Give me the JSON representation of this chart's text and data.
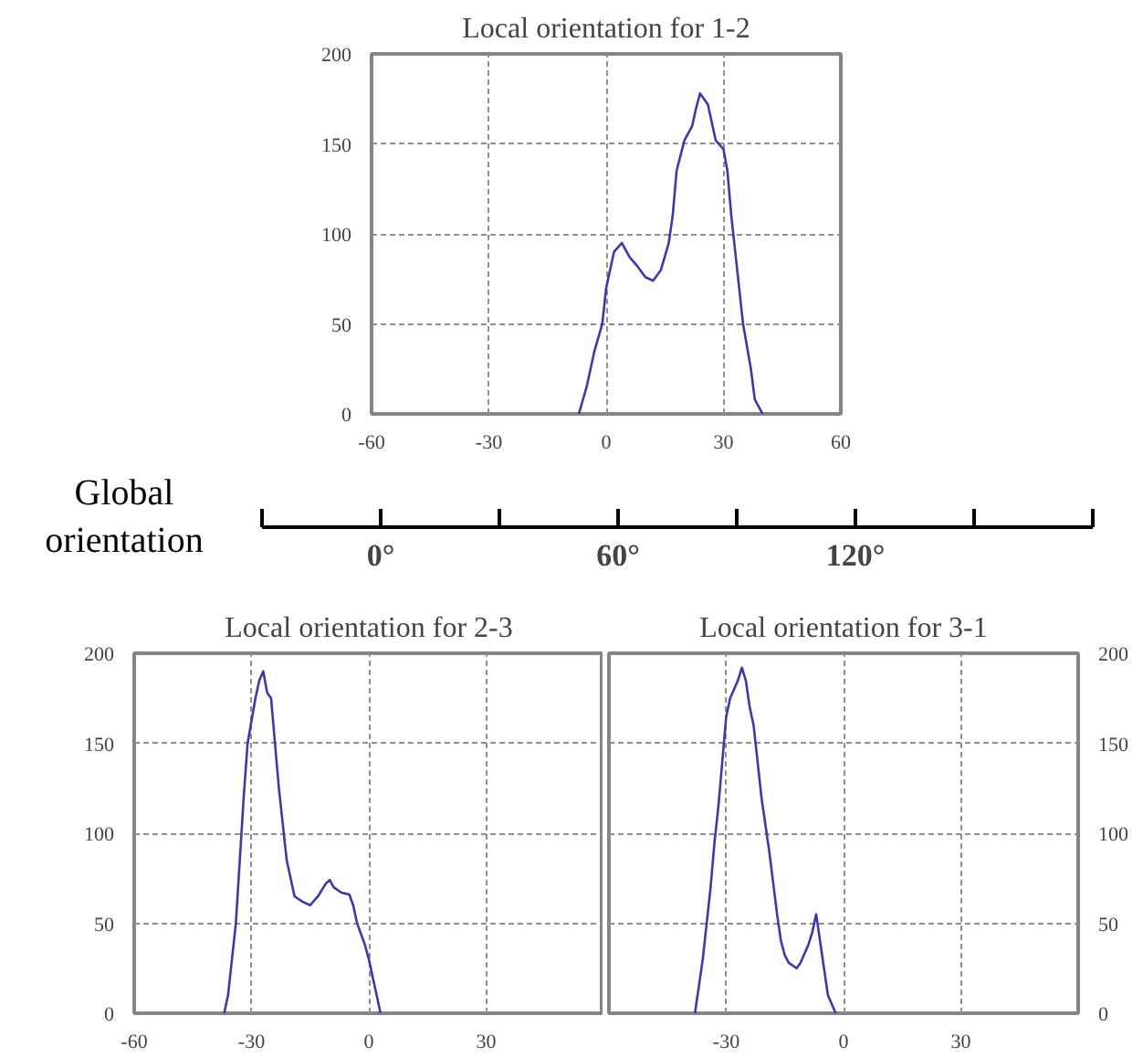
{
  "chart_data": [
    {
      "type": "line",
      "title": "Local orientation for 1-2",
      "color": "#3a3aa8",
      "xlim": [
        -60,
        60
      ],
      "ylim": [
        0,
        200
      ],
      "xticks": [
        -60,
        -30,
        0,
        30,
        60
      ],
      "yticks": [
        0,
        50,
        100,
        150,
        200
      ],
      "grid": true,
      "x": [
        -7,
        -5,
        -3,
        -1,
        0,
        2,
        4,
        6,
        8,
        10,
        12,
        14,
        16,
        17,
        18,
        20,
        22,
        23,
        24,
        26,
        27,
        28,
        30,
        31,
        32,
        33,
        34,
        35,
        37,
        38,
        40
      ],
      "values": [
        0,
        15,
        35,
        50,
        70,
        90,
        95,
        87,
        82,
        76,
        74,
        80,
        95,
        110,
        135,
        152,
        160,
        170,
        178,
        172,
        162,
        152,
        147,
        135,
        110,
        90,
        70,
        50,
        25,
        8,
        0
      ]
    },
    {
      "type": "other",
      "xlabel": "Global orientation",
      "annotations": [
        "0°",
        "60°",
        "120°"
      ]
    },
    {
      "type": "line",
      "title": "Local orientation for 2-3",
      "color": "#3a3aa8",
      "xlim": [
        -60,
        60
      ],
      "ylim": [
        0,
        200
      ],
      "xticks": [
        -60,
        -30,
        0,
        30
      ],
      "yticks": [
        0,
        50,
        100,
        150,
        200
      ],
      "grid": true,
      "x": [
        -37,
        -36,
        -34,
        -33,
        -32,
        -31,
        -29,
        -28,
        -27,
        -26,
        -25,
        -24,
        -23,
        -22,
        -21,
        -20,
        -19,
        -17,
        -15,
        -13,
        -11,
        -10,
        -9,
        -7,
        -5,
        -4,
        -3,
        -1,
        0,
        1,
        2,
        3
      ],
      "values": [
        0,
        10,
        50,
        85,
        120,
        150,
        175,
        185,
        190,
        178,
        175,
        150,
        125,
        105,
        85,
        75,
        65,
        62,
        60,
        65,
        72,
        74,
        70,
        67,
        66,
        60,
        50,
        38,
        30,
        20,
        10,
        0
      ]
    },
    {
      "type": "line",
      "title": "Local orientation for 3-1",
      "color": "#3a3aa8",
      "xlim": [
        -60,
        60
      ],
      "ylim": [
        0,
        200
      ],
      "xticks": [
        -30,
        0,
        30
      ],
      "yticks": [
        0,
        50,
        100,
        150,
        200
      ],
      "grid": true,
      "x": [
        -38,
        -36,
        -34,
        -33,
        -32,
        -31,
        -30,
        -29,
        -27,
        -26,
        -25,
        -24,
        -23,
        -22,
        -21,
        -19,
        -17,
        -16,
        -15,
        -14,
        -12,
        -11,
        -9,
        -8,
        -7,
        -6,
        -5,
        -4,
        -2
      ],
      "values": [
        0,
        30,
        70,
        95,
        115,
        140,
        165,
        175,
        185,
        192,
        185,
        170,
        160,
        140,
        120,
        90,
        55,
        40,
        32,
        28,
        25,
        28,
        38,
        45,
        55,
        40,
        25,
        10,
        0
      ]
    }
  ]
}
